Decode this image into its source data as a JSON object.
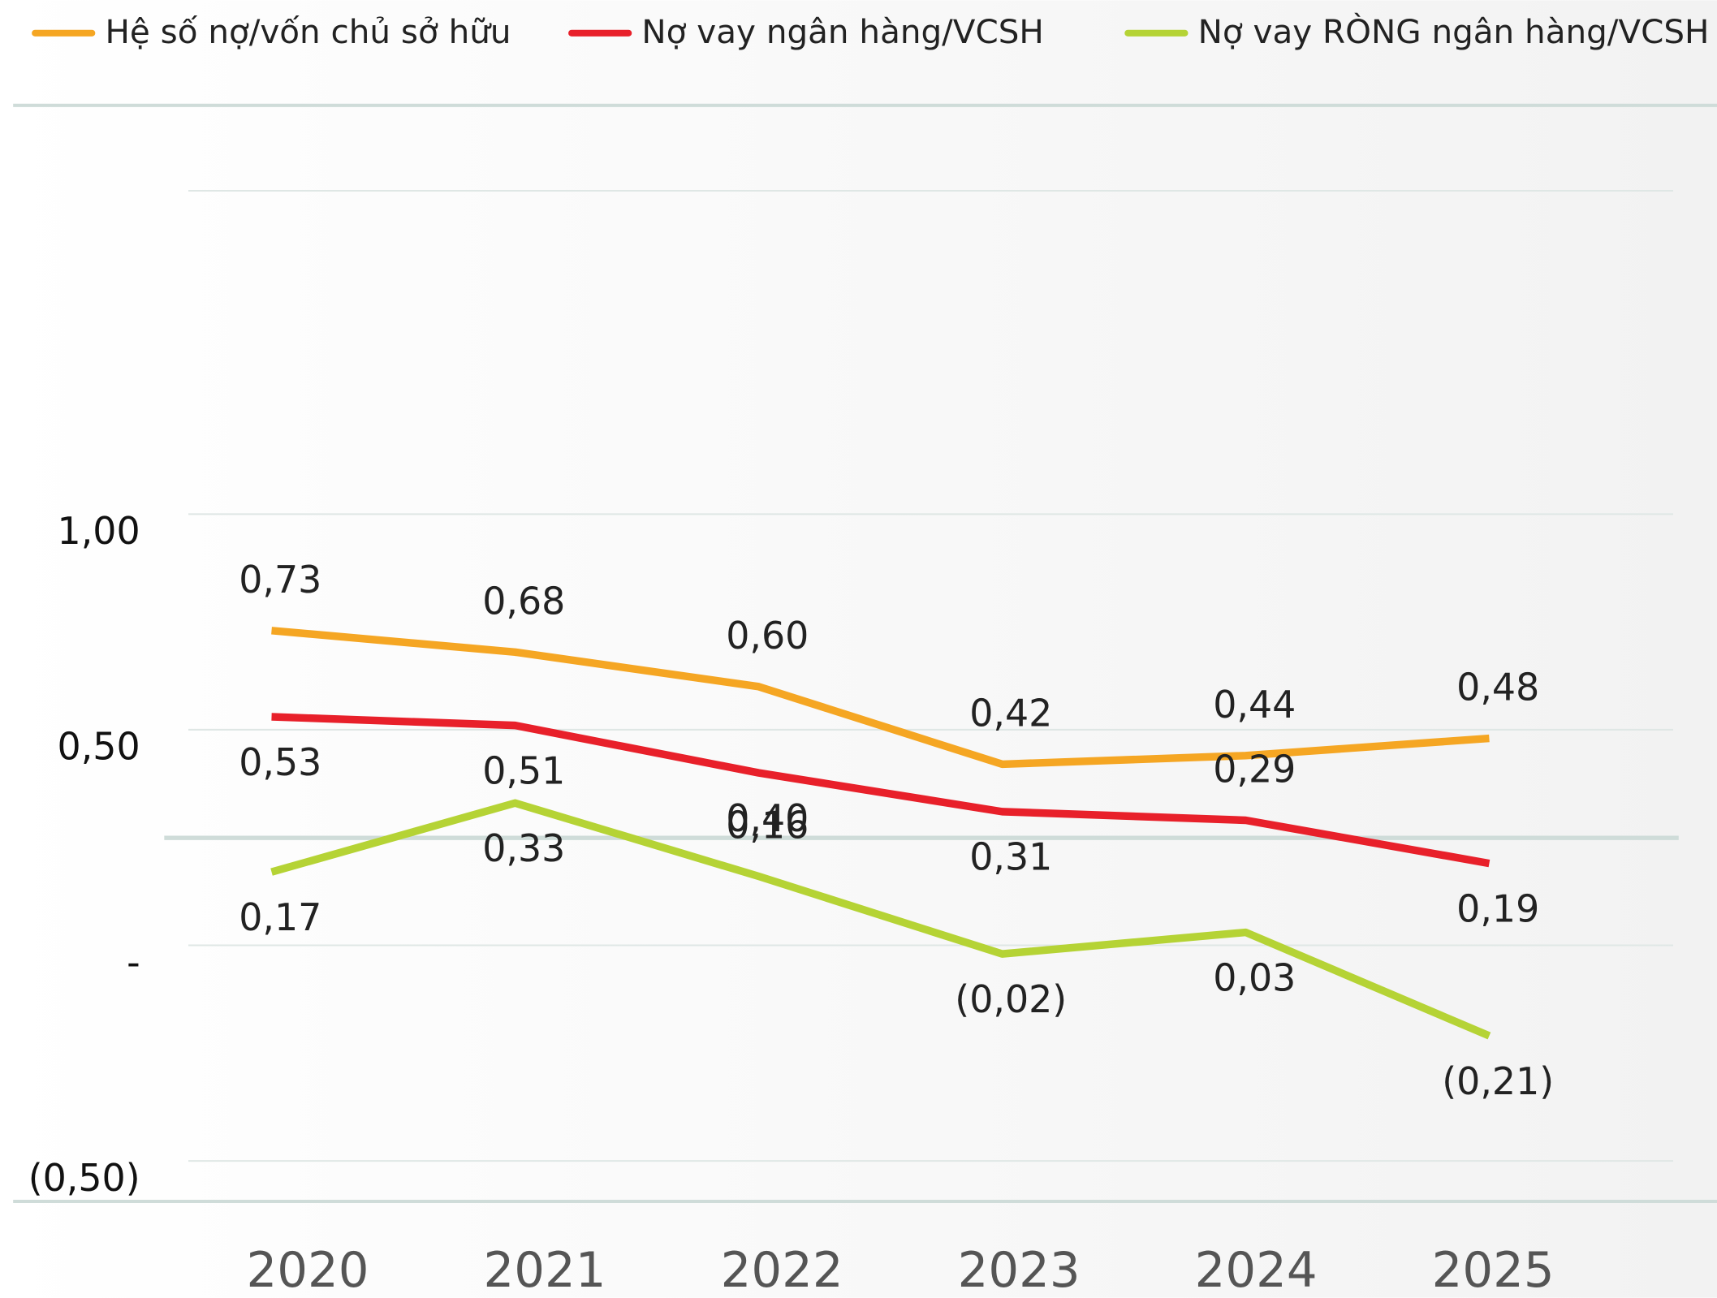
{
  "chart_data": {
    "type": "line",
    "categories": [
      "2020",
      "2021",
      "2022",
      "2023",
      "2024",
      "2025"
    ],
    "series": [
      {
        "name": "Hệ số nợ/vốn chủ sở hữu",
        "color": "#f5a623",
        "values": [
          0.73,
          0.68,
          0.6,
          0.42,
          0.44,
          0.48
        ],
        "value_labels": [
          "0,73",
          "0,68",
          "0,60",
          "0,42",
          "0,44",
          "0,48"
        ]
      },
      {
        "name": "Nợ vay ngân hàng/VCSH",
        "color": "#e8202a",
        "values": [
          0.53,
          0.51,
          0.4,
          0.31,
          0.29,
          0.19
        ],
        "value_labels": [
          "0,53",
          "0,51",
          "0,40",
          "0,31",
          "0,29",
          "0,19"
        ]
      },
      {
        "name": "Nợ vay RÒNG ngân hàng/VCSH",
        "color": "#b5d335",
        "values": [
          0.17,
          0.33,
          0.16,
          -0.02,
          0.03,
          -0.21
        ],
        "value_labels": [
          "0,17",
          "0,33",
          "0,16",
          "(0,02)",
          "0,03",
          "(0,21)"
        ]
      }
    ],
    "ylim": [
      -0.5,
      1.75
    ],
    "yticks": [
      {
        "value": 1,
        "label": "1,00"
      },
      {
        "value": 0.5,
        "label": "0,50"
      },
      {
        "value": 0,
        "label": "-"
      },
      {
        "value": -0.5,
        "label": "(0,50)"
      }
    ],
    "grid": true,
    "legend": "top"
  }
}
